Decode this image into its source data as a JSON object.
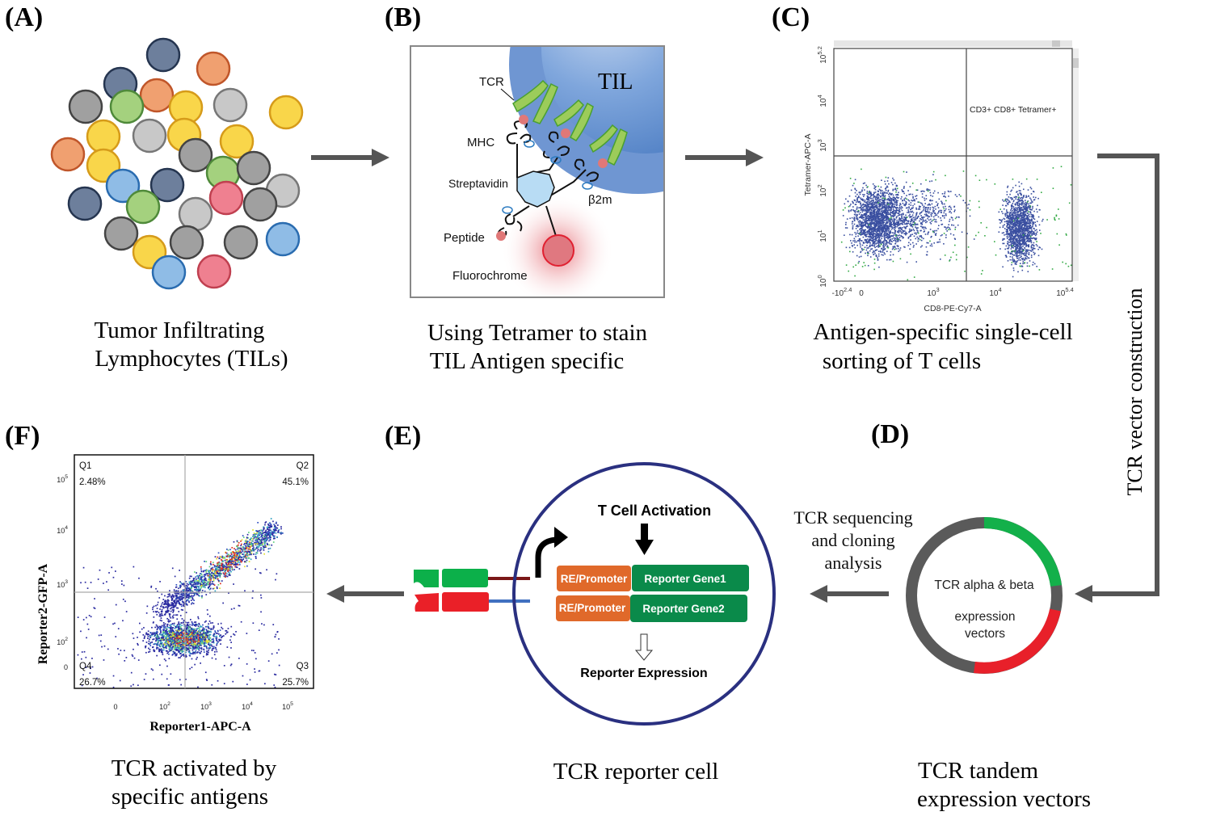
{
  "panels": {
    "A": {
      "letter": "(A)",
      "caption": [
        "Tumor Infiltrating",
        "Lymphocytes (TILs)"
      ]
    },
    "B": {
      "letter": "(B)",
      "caption": [
        "Using Tetramer to stain",
        "TIL Antigen specific"
      ],
      "labels": {
        "til": "TIL",
        "tcr": "TCR",
        "mhc": "MHC",
        "streptavidin": "Streptavidin",
        "b2m": "β2m",
        "peptide": "Peptide",
        "fluorochrome": "Fluorochrome"
      }
    },
    "C": {
      "letter": "(C)",
      "caption": [
        "Antigen-specific single-cell",
        "sorting of T cells"
      ],
      "plot": {
        "xlabel": "CD8-PE-Cy7-A",
        "ylabel": "Tetramer-APC-A",
        "gate_label": "CD3+ CD8+ Tetramer+",
        "xticks": [
          {
            "base": "-10",
            "exp": "2.4"
          },
          {
            "base": "0",
            "exp": ""
          },
          {
            "base": "10",
            "exp": "3"
          },
          {
            "base": "10",
            "exp": "4"
          },
          {
            "base": "10",
            "exp": "5.4"
          }
        ],
        "yticks": [
          {
            "base": "10",
            "exp": "0"
          },
          {
            "base": "10",
            "exp": "1"
          },
          {
            "base": "10",
            "exp": "2"
          },
          {
            "base": "10",
            "exp": "3"
          },
          {
            "base": "10",
            "exp": "4"
          },
          {
            "base": "10",
            "exp": "5.2"
          }
        ]
      }
    },
    "D": {
      "letter": "(D)",
      "caption": [
        "TCR tandem",
        "expression vectors"
      ],
      "side_label": "TCR vector construction",
      "process_label": [
        "TCR sequencing",
        "and cloning",
        "analysis"
      ],
      "plasmid": [
        "TCR alpha & beta",
        "expression",
        "vectors"
      ]
    },
    "E": {
      "letter": "(E)",
      "caption": "TCR reporter cell",
      "activation": "T Cell Activation",
      "promoter1": "RE/Promoter",
      "gene1": "Reporter Gene1",
      "promoter2": "RE/Promoter",
      "gene2": "Reporter Gene2",
      "expression": "Reporter Expression"
    },
    "F": {
      "letter": "(F)",
      "caption": [
        "TCR activated by",
        "specific antigens"
      ],
      "plot": {
        "xlabel": "Reporter1-APC-A",
        "ylabel": "Reporter2-GFP-A",
        "quadrants": [
          {
            "name": "Q1",
            "value": "2.48%"
          },
          {
            "name": "Q2",
            "value": "45.1%"
          },
          {
            "name": "Q3",
            "value": "25.7%"
          },
          {
            "name": "Q4",
            "value": "26.7%"
          }
        ],
        "xticks": [
          {
            "base": "0",
            "exp": ""
          },
          {
            "base": "10",
            "exp": "2"
          },
          {
            "base": "10",
            "exp": "3"
          },
          {
            "base": "10",
            "exp": "4"
          },
          {
            "base": "10",
            "exp": "5"
          }
        ],
        "yticks": [
          {
            "base": "0",
            "exp": ""
          },
          {
            "base": "10",
            "exp": "2"
          },
          {
            "base": "10",
            "exp": "3"
          },
          {
            "base": "10",
            "exp": "4"
          },
          {
            "base": "10",
            "exp": "5"
          }
        ]
      }
    }
  },
  "colors": {
    "arrow": "#555555",
    "scatter_blue": "#3a4fa0",
    "plasmid_gray": "#5a5a5a",
    "plasmid_green": "#13b04a",
    "plasmid_red": "#e8202a",
    "promoter": "#e0692a",
    "gene": "#0a8a4a",
    "cell_border": "#2a3080"
  }
}
